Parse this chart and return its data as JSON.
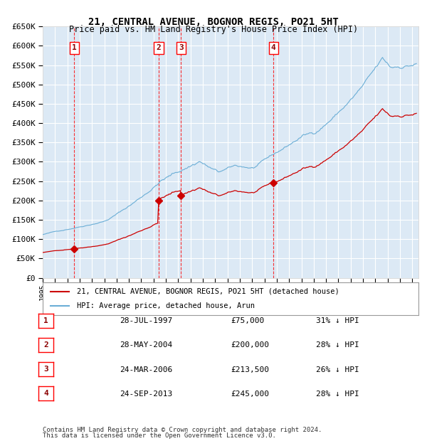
{
  "title": "21, CENTRAL AVENUE, BOGNOR REGIS, PO21 5HT",
  "subtitle": "Price paid vs. HM Land Registry's House Price Index (HPI)",
  "ylim": [
    0,
    650000
  ],
  "yticks": [
    0,
    50000,
    100000,
    150000,
    200000,
    250000,
    300000,
    350000,
    400000,
    450000,
    500000,
    550000,
    600000,
    650000
  ],
  "xlim_start": 1995.0,
  "xlim_end": 2025.5,
  "background_color": "#dce9f5",
  "grid_color": "#ffffff",
  "hpi_color": "#6baed6",
  "price_color": "#cc0000",
  "legend_label_price": "21, CENTRAL AVENUE, BOGNOR REGIS, PO21 5HT (detached house)",
  "legend_label_hpi": "HPI: Average price, detached house, Arun",
  "transactions": [
    {
      "num": 1,
      "date_label": "28-JUL-1997",
      "x": 1997.57,
      "price": 75000,
      "label_price": "£75,000",
      "label_pct": "31% ↓ HPI"
    },
    {
      "num": 2,
      "date_label": "28-MAY-2004",
      "x": 2004.41,
      "price": 200000,
      "label_price": "£200,000",
      "label_pct": "28% ↓ HPI"
    },
    {
      "num": 3,
      "date_label": "24-MAR-2006",
      "x": 2006.23,
      "price": 213500,
      "label_price": "£213,500",
      "label_pct": "26% ↓ HPI"
    },
    {
      "num": 4,
      "date_label": "24-SEP-2013",
      "x": 2013.73,
      "price": 245000,
      "label_price": "£245,000",
      "label_pct": "28% ↓ HPI"
    }
  ],
  "footer_line1": "Contains HM Land Registry data © Crown copyright and database right 2024.",
  "footer_line2": "This data is licensed under the Open Government Licence v3.0."
}
